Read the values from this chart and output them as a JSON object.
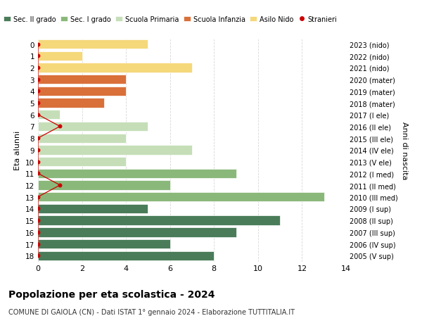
{
  "ages": [
    0,
    1,
    2,
    3,
    4,
    5,
    6,
    7,
    8,
    9,
    10,
    11,
    12,
    13,
    14,
    15,
    16,
    17,
    18
  ],
  "right_labels": [
    "2023 (nido)",
    "2022 (nido)",
    "2021 (nido)",
    "2020 (mater)",
    "2019 (mater)",
    "2018 (mater)",
    "2017 (I ele)",
    "2016 (II ele)",
    "2015 (III ele)",
    "2014 (IV ele)",
    "2013 (V ele)",
    "2012 (I med)",
    "2011 (II med)",
    "2010 (III med)",
    "2009 (I sup)",
    "2008 (II sup)",
    "2007 (III sup)",
    "2006 (IV sup)",
    "2005 (V sup)"
  ],
  "bar_values": [
    5,
    2,
    7,
    4,
    4,
    3,
    1,
    5,
    4,
    7,
    4,
    9,
    6,
    13,
    5,
    11,
    9,
    6,
    8
  ],
  "bar_colors": [
    "#f5d87a",
    "#f5d87a",
    "#f5d87a",
    "#d9703a",
    "#d9703a",
    "#d9703a",
    "#c5deb8",
    "#c5deb8",
    "#c5deb8",
    "#c5deb8",
    "#c5deb8",
    "#8ab87a",
    "#8ab87a",
    "#8ab87a",
    "#4a7c59",
    "#4a7c59",
    "#4a7c59",
    "#4a7c59",
    "#4a7c59"
  ],
  "stranieri_values": [
    0,
    0,
    0,
    0,
    0,
    0,
    0,
    1,
    0,
    0,
    0,
    0,
    1,
    0,
    0,
    0,
    0,
    0,
    0
  ],
  "legend_labels": [
    "Sec. II grado",
    "Sec. I grado",
    "Scuola Primaria",
    "Scuola Infanzia",
    "Asilo Nido",
    "Stranieri"
  ],
  "legend_colors": [
    "#4a7c59",
    "#8ab87a",
    "#c5deb8",
    "#d9703a",
    "#f5d87a",
    "#cc0000"
  ],
  "ylabel": "Eta alunni",
  "right_ylabel": "Anni di nascita",
  "title": "Popolazione per eta scolastica - 2024",
  "subtitle": "COMUNE DI GAIOLA (CN) - Dati ISTAT 1° gennaio 2024 - Elaborazione TUTTITALIA.IT",
  "xlim": [
    0,
    14
  ],
  "ylim_bottom": -0.5,
  "ylim_top": 18.5,
  "background_color": "#ffffff",
  "grid_color": "#d8d8d8"
}
